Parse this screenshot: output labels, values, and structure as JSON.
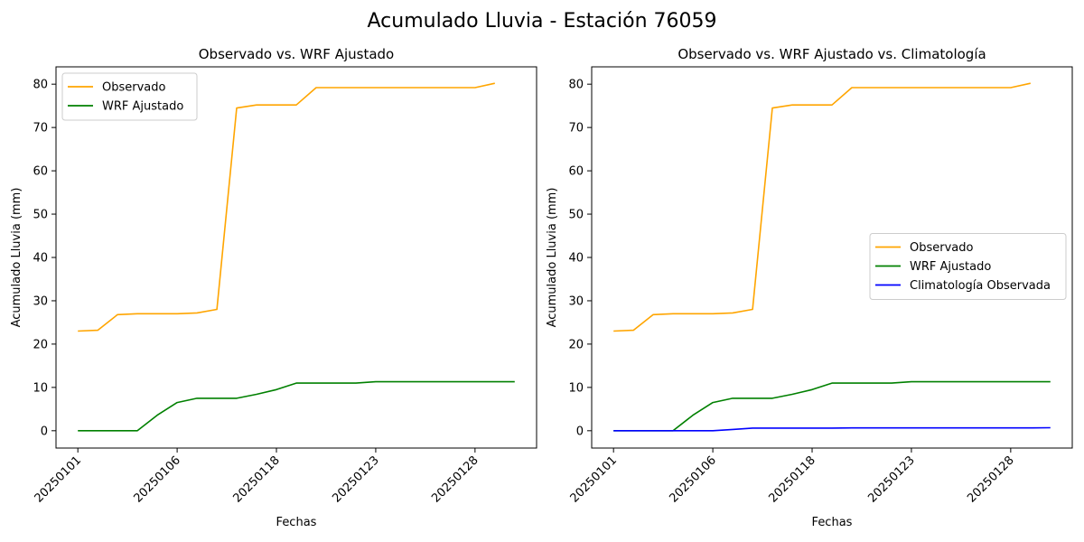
{
  "suptitle": "Acumulado Lluvia - Estación 76059",
  "chart_data": [
    {
      "type": "line",
      "title": "Observado vs. WRF Ajustado",
      "xlabel": "Fechas",
      "ylabel": "Acumulado Lluvia (mm)",
      "ylim": [
        -4,
        84
      ],
      "yticks": [
        0,
        10,
        20,
        30,
        40,
        50,
        60,
        70,
        80
      ],
      "xticks": [
        {
          "index": 0,
          "label": "20250101"
        },
        {
          "index": 5,
          "label": "20250106"
        },
        {
          "index": 10,
          "label": "20250118"
        },
        {
          "index": 15,
          "label": "20250123"
        },
        {
          "index": 20,
          "label": "20250128"
        }
      ],
      "legend": "upper left",
      "series": [
        {
          "name": "Observado",
          "color": "#ffa500",
          "points": [
            [
              0,
              23.0
            ],
            [
              1,
              23.2
            ],
            [
              2,
              26.8
            ],
            [
              3,
              27.0
            ],
            [
              4,
              27.0
            ],
            [
              5,
              27.0
            ],
            [
              6,
              27.2
            ],
            [
              7,
              28.0
            ],
            [
              8,
              74.5
            ],
            [
              9,
              75.2
            ],
            [
              10,
              75.2
            ],
            [
              11,
              75.2
            ],
            [
              12,
              79.2
            ],
            [
              13,
              79.2
            ],
            [
              14,
              79.2
            ],
            [
              15,
              79.2
            ],
            [
              16,
              79.2
            ],
            [
              17,
              79.2
            ],
            [
              18,
              79.2
            ],
            [
              19,
              79.2
            ],
            [
              20,
              79.2
            ],
            [
              21,
              80.2
            ]
          ]
        },
        {
          "name": "WRF Ajustado",
          "color": "#008000",
          "points": [
            [
              0,
              0
            ],
            [
              1,
              0
            ],
            [
              2,
              0
            ],
            [
              3,
              0
            ],
            [
              4,
              3.6
            ],
            [
              5,
              6.5
            ],
            [
              6,
              7.5
            ],
            [
              7,
              7.5
            ],
            [
              8,
              7.5
            ],
            [
              9,
              8.4
            ],
            [
              10,
              9.5
            ],
            [
              11,
              11.0
            ],
            [
              12,
              11.0
            ],
            [
              13,
              11.0
            ],
            [
              14,
              11.0
            ],
            [
              15,
              11.3
            ],
            [
              16,
              11.3
            ],
            [
              17,
              11.3
            ],
            [
              18,
              11.3
            ],
            [
              19,
              11.3
            ],
            [
              20,
              11.3
            ],
            [
              21,
              11.3
            ],
            [
              22,
              11.3
            ]
          ]
        }
      ]
    },
    {
      "type": "line",
      "title": "Observado vs. WRF Ajustado vs. Climatología",
      "xlabel": "Fechas",
      "ylabel": "Acumulado Lluvia (mm)",
      "ylim": [
        -4,
        84
      ],
      "yticks": [
        0,
        10,
        20,
        30,
        40,
        50,
        60,
        70,
        80
      ],
      "xticks": [
        {
          "index": 0,
          "label": "20250101"
        },
        {
          "index": 5,
          "label": "20250106"
        },
        {
          "index": 10,
          "label": "20250118"
        },
        {
          "index": 15,
          "label": "20250123"
        },
        {
          "index": 20,
          "label": "20250128"
        }
      ],
      "legend": "center right",
      "series": [
        {
          "name": "Observado",
          "color": "#ffa500",
          "points": [
            [
              0,
              23.0
            ],
            [
              1,
              23.2
            ],
            [
              2,
              26.8
            ],
            [
              3,
              27.0
            ],
            [
              4,
              27.0
            ],
            [
              5,
              27.0
            ],
            [
              6,
              27.2
            ],
            [
              7,
              28.0
            ],
            [
              8,
              74.5
            ],
            [
              9,
              75.2
            ],
            [
              10,
              75.2
            ],
            [
              11,
              75.2
            ],
            [
              12,
              79.2
            ],
            [
              13,
              79.2
            ],
            [
              14,
              79.2
            ],
            [
              15,
              79.2
            ],
            [
              16,
              79.2
            ],
            [
              17,
              79.2
            ],
            [
              18,
              79.2
            ],
            [
              19,
              79.2
            ],
            [
              20,
              79.2
            ],
            [
              21,
              80.2
            ]
          ]
        },
        {
          "name": "WRF Ajustado",
          "color": "#008000",
          "points": [
            [
              0,
              0
            ],
            [
              1,
              0
            ],
            [
              2,
              0
            ],
            [
              3,
              0
            ],
            [
              4,
              3.6
            ],
            [
              5,
              6.5
            ],
            [
              6,
              7.5
            ],
            [
              7,
              7.5
            ],
            [
              8,
              7.5
            ],
            [
              9,
              8.4
            ],
            [
              10,
              9.5
            ],
            [
              11,
              11.0
            ],
            [
              12,
              11.0
            ],
            [
              13,
              11.0
            ],
            [
              14,
              11.0
            ],
            [
              15,
              11.3
            ],
            [
              16,
              11.3
            ],
            [
              17,
              11.3
            ],
            [
              18,
              11.3
            ],
            [
              19,
              11.3
            ],
            [
              20,
              11.3
            ],
            [
              21,
              11.3
            ],
            [
              22,
              11.3
            ]
          ]
        },
        {
          "name": "Climatología Observada",
          "color": "#0000ff",
          "points": [
            [
              0,
              0
            ],
            [
              1,
              0
            ],
            [
              2,
              0
            ],
            [
              3,
              0
            ],
            [
              4,
              0
            ],
            [
              5,
              0
            ],
            [
              6,
              0.3
            ],
            [
              7,
              0.6
            ],
            [
              8,
              0.6
            ],
            [
              9,
              0.6
            ],
            [
              10,
              0.6
            ],
            [
              11,
              0.6
            ],
            [
              12,
              0.65
            ],
            [
              13,
              0.65
            ],
            [
              14,
              0.65
            ],
            [
              15,
              0.65
            ],
            [
              16,
              0.65
            ],
            [
              17,
              0.65
            ],
            [
              18,
              0.65
            ],
            [
              19,
              0.65
            ],
            [
              20,
              0.65
            ],
            [
              21,
              0.65
            ],
            [
              22,
              0.7
            ]
          ]
        }
      ]
    }
  ]
}
